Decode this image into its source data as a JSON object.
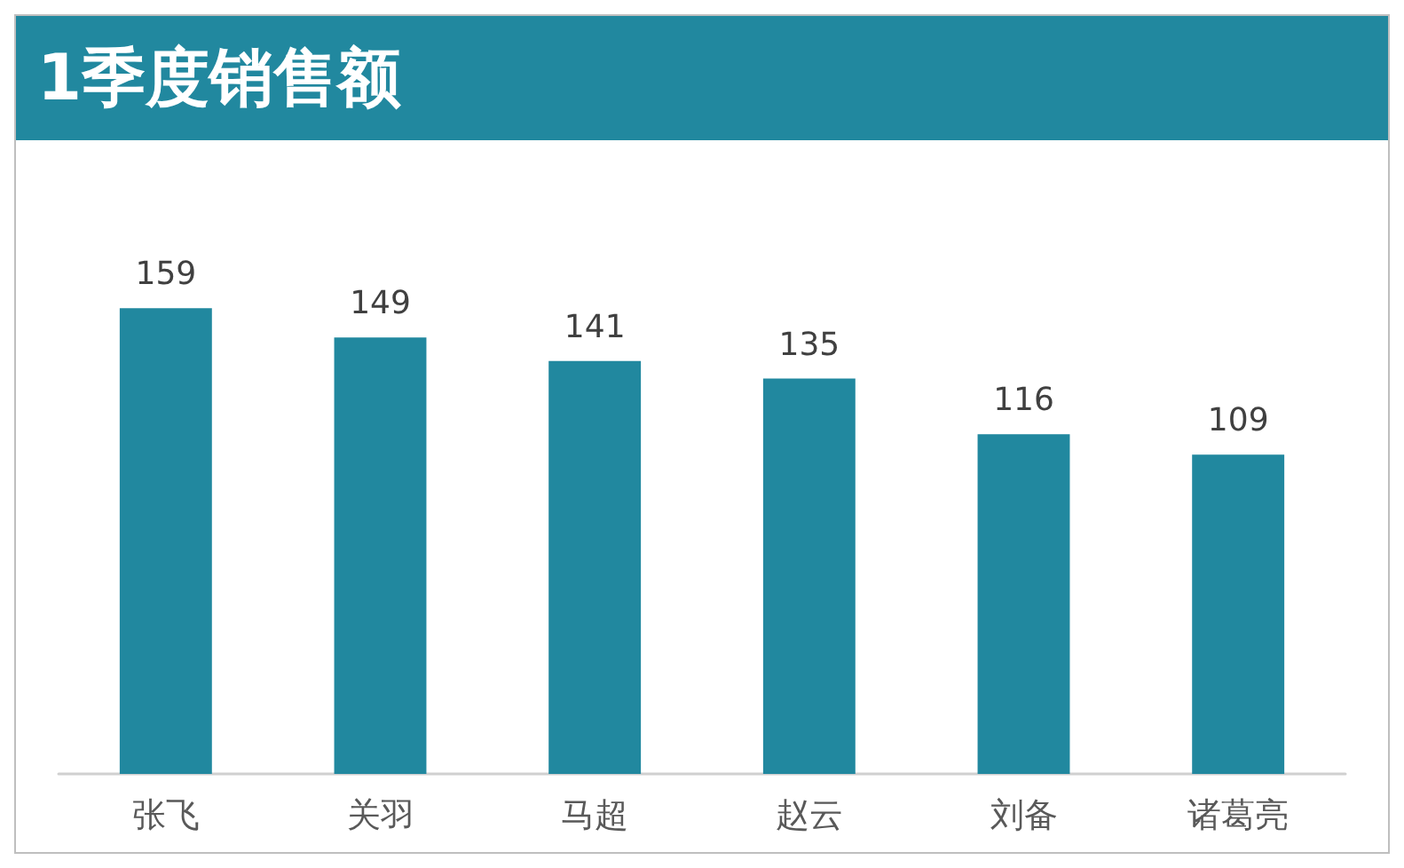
{
  "chart_data": {
    "type": "bar",
    "title": "1季度销售额",
    "categories": [
      "张飞",
      "关羽",
      "马超",
      "赵云",
      "刘备",
      "诸葛亮"
    ],
    "values": [
      159,
      149,
      141,
      135,
      116,
      109
    ],
    "color": "#21889f",
    "data_labels": true
  }
}
